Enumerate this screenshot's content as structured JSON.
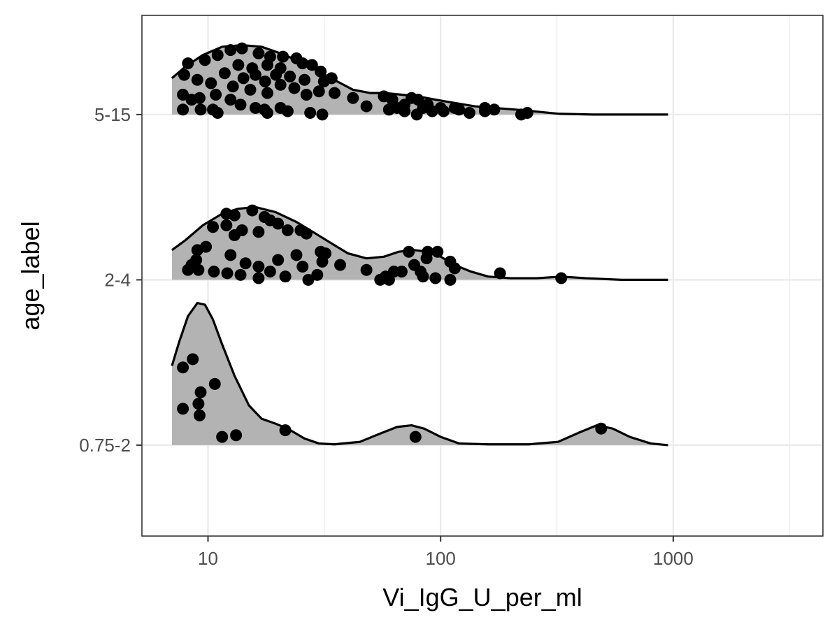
{
  "chart_data": {
    "type": "ridgeline",
    "xlabel": "Vi_IgG_U_per_ml",
    "ylabel": "age_label",
    "x_scale": "log10",
    "x_range": [
      5.2,
      4400
    ],
    "x_ticks": [
      10,
      100,
      1000
    ],
    "x_tick_labels": [
      "10",
      "100",
      "1000"
    ],
    "y_categories": [
      "0.75-2",
      "2-4",
      "5-15"
    ],
    "y_range": [
      -0.55,
      2.6
    ],
    "grid": true,
    "colors": {
      "fill": "#b3b3b3",
      "line": "#000000",
      "point": "#000000",
      "grid": "#ebebeb",
      "panel_border": "#333333"
    },
    "groups": [
      {
        "name": "0.75-2",
        "density_curve": [
          [
            7,
            0.48
          ],
          [
            7.5,
            0.62
          ],
          [
            8.2,
            0.78
          ],
          [
            9,
            0.86
          ],
          [
            9.7,
            0.85
          ],
          [
            10.5,
            0.76
          ],
          [
            11.5,
            0.61
          ],
          [
            13,
            0.42
          ],
          [
            15,
            0.24
          ],
          [
            17,
            0.16
          ],
          [
            19.5,
            0.13
          ],
          [
            22,
            0.1
          ],
          [
            26,
            0.04
          ],
          [
            30,
            0.01
          ],
          [
            35,
            0.005
          ],
          [
            45,
            0.02
          ],
          [
            55,
            0.07
          ],
          [
            65,
            0.11
          ],
          [
            75,
            0.12
          ],
          [
            85,
            0.1
          ],
          [
            100,
            0.05
          ],
          [
            120,
            0.01
          ],
          [
            160,
            0.005
          ],
          [
            240,
            0.005
          ],
          [
            320,
            0.02
          ],
          [
            400,
            0.08
          ],
          [
            470,
            0.12
          ],
          [
            550,
            0.1
          ],
          [
            650,
            0.05
          ],
          [
            800,
            0.01
          ],
          [
            950,
            0.0
          ]
        ],
        "points": [
          [
            7.8,
            0.47
          ],
          [
            8.6,
            0.52
          ],
          [
            10.7,
            0.37
          ],
          [
            9.3,
            0.32
          ],
          [
            9.1,
            0.25
          ],
          [
            7.8,
            0.22
          ],
          [
            9.2,
            0.18
          ],
          [
            13.2,
            0.06
          ],
          [
            11.5,
            0.05
          ],
          [
            21.5,
            0.09
          ],
          [
            78,
            0.05
          ],
          [
            490,
            0.1
          ]
        ]
      },
      {
        "name": "2-4",
        "density_curve": [
          [
            7,
            0.18
          ],
          [
            8,
            0.24
          ],
          [
            9.5,
            0.33
          ],
          [
            11.5,
            0.4
          ],
          [
            13.5,
            0.43
          ],
          [
            16,
            0.44
          ],
          [
            19.5,
            0.41
          ],
          [
            24,
            0.35
          ],
          [
            29,
            0.28
          ],
          [
            34,
            0.22
          ],
          [
            40,
            0.16
          ],
          [
            48,
            0.13
          ],
          [
            57,
            0.14
          ],
          [
            66,
            0.17
          ],
          [
            77,
            0.18
          ],
          [
            88,
            0.17
          ],
          [
            100,
            0.14
          ],
          [
            115,
            0.09
          ],
          [
            135,
            0.05
          ],
          [
            160,
            0.02
          ],
          [
            200,
            0.01
          ],
          [
            260,
            0.01
          ],
          [
            330,
            0.02
          ],
          [
            420,
            0.01
          ],
          [
            600,
            0.0
          ],
          [
            950,
            0.0
          ]
        ],
        "points": [
          [
            15.5,
            0.42
          ],
          [
            13,
            0.39
          ],
          [
            12,
            0.4
          ],
          [
            17.5,
            0.38
          ],
          [
            18.5,
            0.36
          ],
          [
            20,
            0.34
          ],
          [
            12,
            0.33
          ],
          [
            10.5,
            0.32
          ],
          [
            14,
            0.3
          ],
          [
            16.5,
            0.29
          ],
          [
            13,
            0.27
          ],
          [
            22,
            0.3
          ],
          [
            25,
            0.3
          ],
          [
            26.5,
            0.28
          ],
          [
            30.5,
            0.17
          ],
          [
            32,
            0.16
          ],
          [
            9,
            0.18
          ],
          [
            9.8,
            0.2
          ],
          [
            12.5,
            0.15
          ],
          [
            24,
            0.15
          ],
          [
            20,
            0.12
          ],
          [
            14.5,
            0.1
          ],
          [
            16.5,
            0.08
          ],
          [
            18.5,
            0.05
          ],
          [
            25.5,
            0.08
          ],
          [
            31,
            0.11
          ],
          [
            37,
            0.09
          ],
          [
            9.1,
            0.06
          ],
          [
            8.2,
            0.06
          ],
          [
            8.5,
            0.09
          ],
          [
            8.9,
            0.12
          ],
          [
            10.6,
            0.05
          ],
          [
            12.1,
            0.04
          ],
          [
            13.8,
            0.03
          ],
          [
            16.5,
            0.01
          ],
          [
            21.5,
            0.02
          ],
          [
            27,
            0.0
          ],
          [
            29.5,
            0.03
          ],
          [
            48,
            0.06
          ],
          [
            58,
            0.02
          ],
          [
            63,
            0.05
          ],
          [
            68,
            0.05
          ],
          [
            77,
            0.09
          ],
          [
            82,
            0.05
          ],
          [
            87,
            0.13
          ],
          [
            97,
            0.17
          ],
          [
            110,
            0.11
          ],
          [
            115,
            0.07
          ],
          [
            73,
            0.17
          ],
          [
            88,
            0.17
          ],
          [
            55,
            0.0
          ],
          [
            60,
            0.0
          ],
          [
            84,
            0.02
          ],
          [
            95,
            0.01
          ],
          [
            110,
            0.0
          ],
          [
            180,
            0.04
          ],
          [
            330,
            0.01
          ]
        ],
        "points_note": ""
      },
      {
        "name": "5-15",
        "density_curve": [
          [
            7,
            0.22
          ],
          [
            8,
            0.29
          ],
          [
            9.5,
            0.36
          ],
          [
            11.5,
            0.41
          ],
          [
            14,
            0.42
          ],
          [
            17,
            0.41
          ],
          [
            20.5,
            0.37
          ],
          [
            25,
            0.32
          ],
          [
            30,
            0.26
          ],
          [
            36,
            0.2
          ],
          [
            42,
            0.15
          ],
          [
            50,
            0.13
          ],
          [
            58,
            0.13
          ],
          [
            68,
            0.12
          ],
          [
            80,
            0.11
          ],
          [
            95,
            0.09
          ],
          [
            115,
            0.07
          ],
          [
            140,
            0.05
          ],
          [
            170,
            0.04
          ],
          [
            210,
            0.03
          ],
          [
            250,
            0.02
          ],
          [
            320,
            0.005
          ],
          [
            450,
            0.0
          ],
          [
            950,
            0.0
          ]
        ],
        "points": [
          [
            12.5,
            0.39
          ],
          [
            14,
            0.4
          ],
          [
            16.5,
            0.37
          ],
          [
            18.5,
            0.35
          ],
          [
            21,
            0.35
          ],
          [
            24,
            0.34
          ],
          [
            11,
            0.36
          ],
          [
            9.7,
            0.33
          ],
          [
            8.2,
            0.31
          ],
          [
            13.5,
            0.3
          ],
          [
            15.5,
            0.28
          ],
          [
            18,
            0.3
          ],
          [
            20.5,
            0.28
          ],
          [
            25.5,
            0.31
          ],
          [
            28,
            0.3
          ],
          [
            30.5,
            0.26
          ],
          [
            34,
            0.22
          ],
          [
            11.8,
            0.25
          ],
          [
            14.2,
            0.22
          ],
          [
            16,
            0.24
          ],
          [
            17.6,
            0.2
          ],
          [
            19.6,
            0.24
          ],
          [
            22.5,
            0.23
          ],
          [
            26,
            0.21
          ],
          [
            31.5,
            0.2
          ],
          [
            7.9,
            0.24
          ],
          [
            9,
            0.21
          ],
          [
            10.3,
            0.19
          ],
          [
            12.8,
            0.17
          ],
          [
            15.2,
            0.15
          ],
          [
            18,
            0.13
          ],
          [
            20.5,
            0.18
          ],
          [
            23.5,
            0.16
          ],
          [
            26.5,
            0.12
          ],
          [
            30,
            0.14
          ],
          [
            35,
            0.13
          ],
          [
            42,
            0.1
          ],
          [
            48,
            0.05
          ],
          [
            57,
            0.11
          ],
          [
            62,
            0.09
          ],
          [
            70,
            0.06
          ],
          [
            75,
            0.1
          ],
          [
            80,
            0.09
          ],
          [
            88,
            0.06
          ],
          [
            60,
            0.03
          ],
          [
            65,
            0.04
          ],
          [
            79,
            0.0
          ],
          [
            84,
            0.04
          ],
          [
            100,
            0.04
          ],
          [
            115,
            0.04
          ],
          [
            120,
            0.03
          ],
          [
            133,
            0.01
          ],
          [
            155,
            0.04
          ],
          [
            170,
            0.03
          ],
          [
            222,
            0.0
          ],
          [
            236,
            0.01
          ],
          [
            7.8,
            0.12
          ],
          [
            8.5,
            0.09
          ],
          [
            9.2,
            0.1
          ],
          [
            10.8,
            0.12
          ],
          [
            12.5,
            0.09
          ],
          [
            13.8,
            0.06
          ],
          [
            16,
            0.04
          ],
          [
            17.5,
            0.03
          ],
          [
            20.5,
            0.04
          ],
          [
            22,
            0.02
          ],
          [
            27.5,
            0.01
          ],
          [
            31,
            0.0
          ],
          [
            9.3,
            0.03
          ],
          [
            10.5,
            0.03
          ],
          [
            7.8,
            0.03
          ],
          [
            11,
            0.01
          ],
          [
            18,
            0.01
          ],
          [
            60,
            0.03
          ],
          [
            70,
            0.02
          ],
          [
            92,
            0.02
          ],
          [
            103,
            0.02
          ],
          [
            155,
            0.02
          ]
        ]
      }
    ]
  }
}
